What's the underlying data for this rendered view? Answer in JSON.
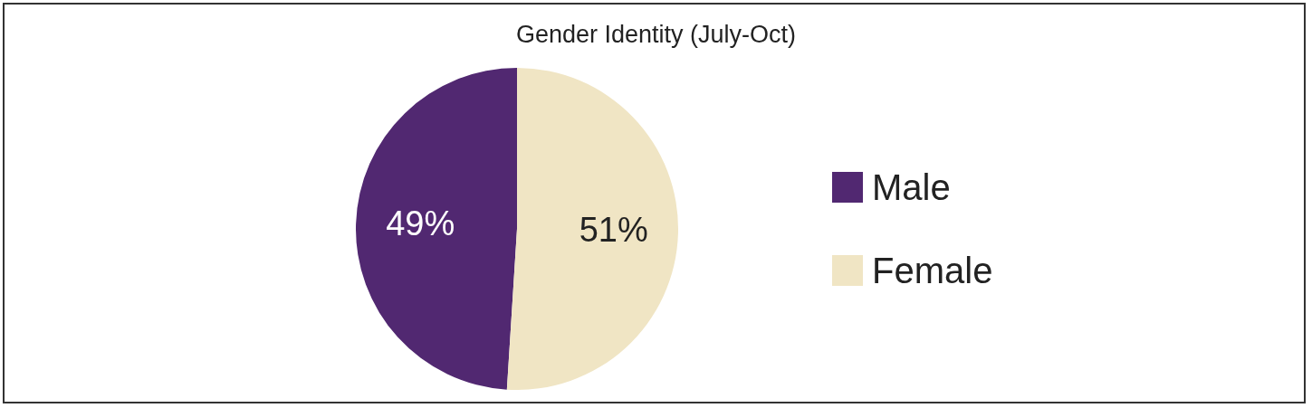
{
  "chart_data": {
    "type": "pie",
    "title": "Gender Identity (July-Oct)",
    "categories": [
      "Male",
      "Female"
    ],
    "values": [
      49,
      51
    ],
    "colors": [
      "#512871",
      "#f0e5c4"
    ],
    "value_labels": [
      "49%",
      "51%"
    ],
    "legend": "right"
  }
}
